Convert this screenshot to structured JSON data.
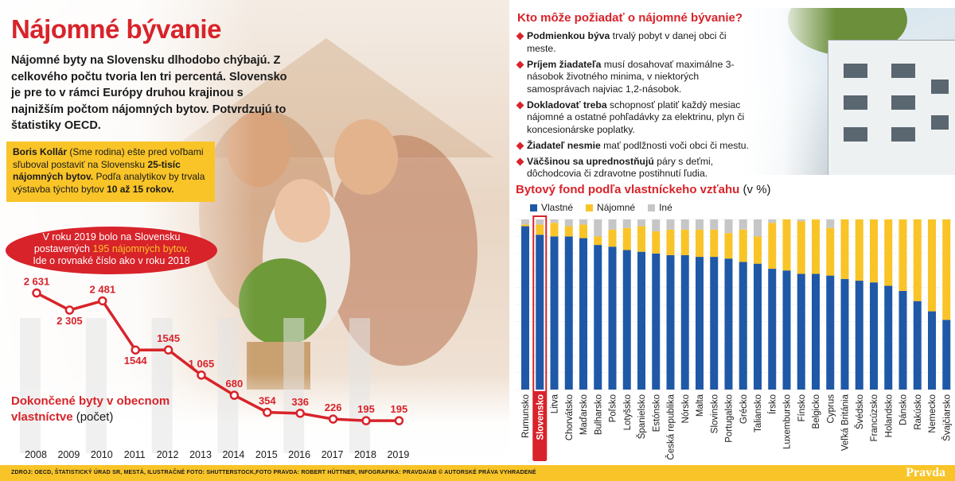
{
  "left": {
    "title": "Nájomné bývanie",
    "intro": "Nájomné byty na Slovensku dlhodobo chýbajú. Z celkového počtu tvoria len tri percentá. Slovensko je pre to v rámci Európy druhou krajinou s najnižším počtom nájomných bytov. Potvrdzujú to štatistiky OECD.",
    "box": {
      "p1": "Boris Kollár",
      "p2": " (Sme rodina) ešte pred voľbami sľuboval postaviť na Slovensku ",
      "p3": "25-tisíc nájomných bytov.",
      "p4": " Podľa analytikov by trvala výstavba týchto bytov ",
      "p5": "10 až 15 rokov."
    },
    "oval": {
      "l1": "V roku 2019 bolo na Slovensku",
      "l2a": "postavených ",
      "l2b": "195 nájomných bytov.",
      "l3": "Ide o rovnaké číslo ako v roku 2018"
    },
    "caption": {
      "line1": "Dokončené byty v obecnom",
      "line2": "vlastníctve",
      "unit": " (počet)"
    }
  },
  "right": {
    "question_title": "Kto môže požiadať o nájomné bývanie?",
    "bullets": [
      {
        "bold": "Podmienkou býva",
        "text": " trvalý pobyt v danej obci či meste."
      },
      {
        "bold": "Príjem žiadateľa",
        "text": " musí dosahovať maximálne 3-násobok životného minima, v niektorých samosprávach najviac 1,2-násobok."
      },
      {
        "bold": "Dokladovať treba",
        "text": " schopnosť platiť každý mesiac nájomné a ostatné pohľadávky za elektrinu, plyn či koncesionárske poplatky."
      },
      {
        "bold": "Žiadateľ nesmie",
        "text": " mať podlžnosti voči obci či mestu."
      },
      {
        "bold": "Väčšinou sa uprednostňujú",
        "text": " páry s deťmi, dôchodcovia či zdravotne postihnutí ľudia."
      }
    ],
    "chart_title": "Bytový fond podľa vlastníckeho vzťahu",
    "chart_unit": " (v %)"
  },
  "colors": {
    "red": "#d8232a",
    "yellow": "#f9c428",
    "blue": "#1f58a7",
    "grey": "#c6c6c6"
  },
  "footer": {
    "source": "ZDROJ: OECD, ŠTATISTICKÝ ÚRAD SR, MESTÁ, ILUSTRAČNÉ FOTO: SHUTTERSTOCK,FOTO PRAVDA: ROBERT HÜTTNER, INFOGRAFIKA: PRAVDA/AB © AUTORSKÉ PRÁVA VYHRADENÉ",
    "logo": "Pravda"
  },
  "chart_data": [
    {
      "type": "line",
      "title": "Dokončené byty v obecnom vlastníctve",
      "ylabel": "počet",
      "x": [
        "2008",
        "2009",
        "2010",
        "2011",
        "2012",
        "2013",
        "2014",
        "2015",
        "2016",
        "2017",
        "2018",
        "2019"
      ],
      "series": [
        {
          "values": [
            2631,
            2305,
            2481,
            1544,
            1545,
            1065,
            680,
            354,
            336,
            226,
            195,
            195
          ]
        }
      ],
      "labels": [
        "2 631",
        "2 305",
        "2 481",
        "1544",
        "1545",
        "1 065",
        "680",
        "354",
        "336",
        "226",
        "195",
        "195"
      ],
      "ylim": [
        0,
        2700
      ]
    },
    {
      "type": "bar",
      "stacked": true,
      "title": "Bytový fond podľa vlastníckeho vzťahu",
      "ylabel": "v %",
      "ylim": [
        0,
        100
      ],
      "legend": "top-left",
      "highlight": "Slovensko",
      "categories": [
        "Rumunsko",
        "Slovensko",
        "Litva",
        "Chorvátsko",
        "Maďarsko",
        "Bulharsko",
        "Poľsko",
        "Lotyšsko",
        "Španielsko",
        "Estónsko",
        "Česká republika",
        "Nórsko",
        "Malta",
        "Slovinsko",
        "Portugalsko",
        "Grécko",
        "Taliansko",
        "Írsko",
        "Luxembursko",
        "Fínsko",
        "Belgicko",
        "Cyprus",
        "Veľká Británia",
        "Švédsko",
        "Francúzsko",
        "Holandsko",
        "Dánsko",
        "Rakúsko",
        "Nemecko",
        "Švajčiarsko"
      ],
      "series": [
        {
          "name": "Vlastné",
          "color": "#1f58a7",
          "values": [
            96,
            91,
            90,
            90,
            89,
            85,
            84,
            82,
            81,
            80,
            79,
            79,
            78,
            78,
            77,
            75,
            74,
            71,
            70,
            68,
            68,
            67,
            65,
            64,
            63,
            61,
            58,
            52,
            46,
            41
          ]
        },
        {
          "name": "Nájomné",
          "color": "#f9c428",
          "values": [
            1,
            6,
            8,
            6,
            8,
            5,
            10,
            13,
            15,
            13,
            15,
            15,
            16,
            16,
            15,
            19,
            16,
            27,
            30,
            31,
            32,
            28,
            35,
            36,
            37,
            39,
            42,
            48,
            54,
            59
          ]
        },
        {
          "name": "Iné",
          "color": "#c6c6c6",
          "values": [
            3,
            3,
            2,
            4,
            3,
            10,
            6,
            5,
            4,
            7,
            6,
            6,
            6,
            6,
            8,
            6,
            10,
            2,
            0,
            1,
            0,
            5,
            0,
            0,
            0,
            0,
            0,
            0,
            0,
            0
          ]
        }
      ]
    }
  ]
}
